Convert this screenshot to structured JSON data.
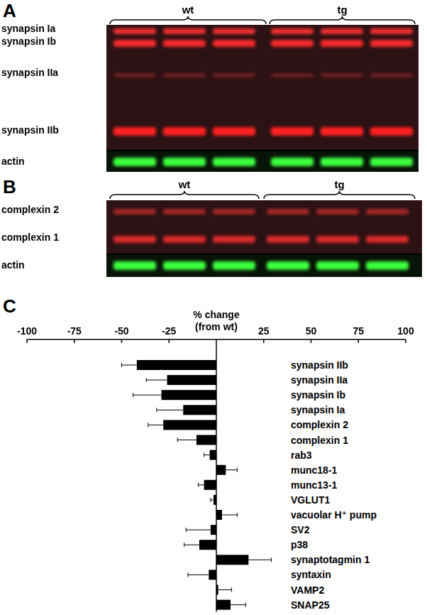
{
  "panel_labels": [
    "A",
    "B",
    "C"
  ],
  "blots": [
    {
      "groups": [
        "wt",
        "tg"
      ],
      "rows": [
        "synapsin Ia",
        "synapsin Ib",
        "synapsin IIa",
        "synapsin IIb",
        "actin"
      ]
    },
    {
      "groups": [
        "wt",
        "tg"
      ],
      "rows": [
        "complexin 2",
        "complexin 1",
        "actin"
      ]
    }
  ],
  "chart_data": {
    "type": "bar",
    "orientation": "horizontal",
    "x_label": "% change\n(from wt)",
    "categories": [
      "synapsin IIb",
      "synapsin IIa",
      "synapsin Ib",
      "synapsin Ia",
      "complexin 2",
      "complexin 1",
      "rab3",
      "munc18-1",
      "munc13-1",
      "VGLUT1",
      "vacuolar H⁺ pump",
      "SV2",
      "p38",
      "synaptotagmin 1",
      "syntaxin",
      "VAMP2",
      "SNAP25"
    ],
    "values": [
      -42,
      -26,
      -29,
      -17.5,
      -28,
      -10.5,
      -3.5,
      5,
      -6.5,
      -1.5,
      3,
      -3,
      -9,
      17,
      -4,
      1,
      7.5
    ],
    "errors": [
      8,
      11,
      15,
      14,
      8,
      10,
      3,
      6,
      3,
      1.5,
      8,
      13,
      8,
      12,
      11,
      7,
      8
    ],
    "color": "#000000",
    "xlim": [
      -100,
      100
    ],
    "xticks": [
      -100,
      -75,
      -50,
      -25,
      25,
      50,
      75,
      100
    ],
    "grid": false
  }
}
